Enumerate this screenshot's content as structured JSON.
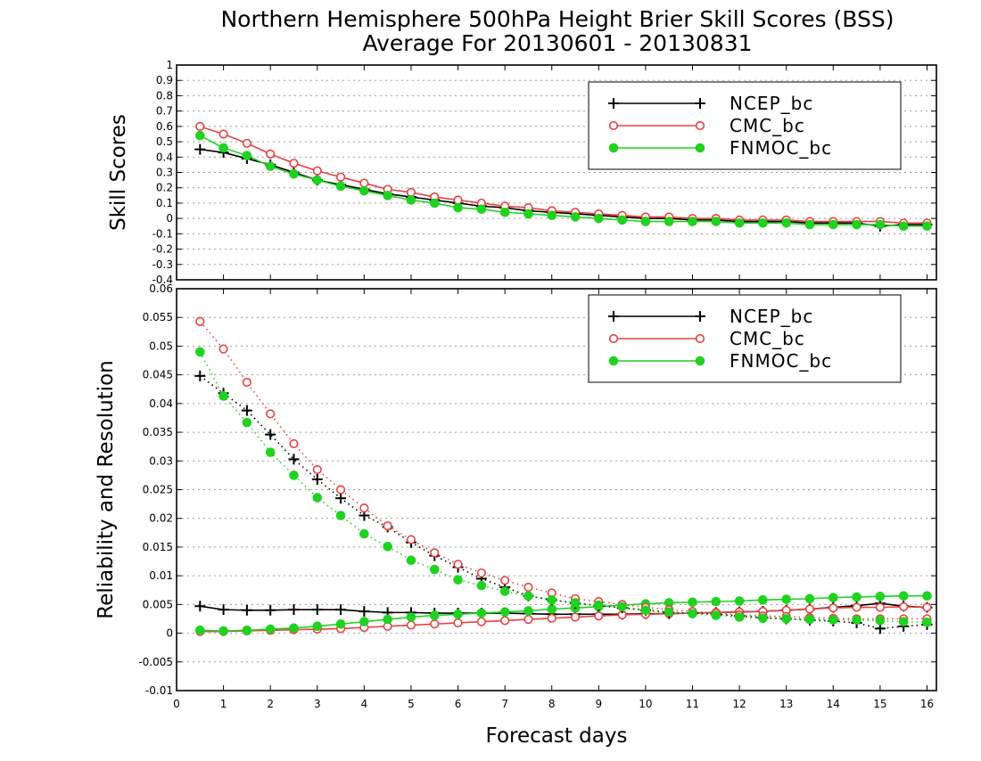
{
  "title": {
    "line1": "Northern Hemisphere 500hPa Height Brier Skill Scores (BSS)",
    "line2": "Average For 20130601 - 20130831"
  },
  "colors": {
    "NCEP_bc": "#000000",
    "CMC_bc": "#e84040",
    "FNMOC_bc": "#1fd21f"
  },
  "chart_data": [
    {
      "type": "line",
      "panel": "top",
      "ylabel": "Skill Scores",
      "xlabel": "",
      "xlim": [
        0,
        16.2
      ],
      "ylim": [
        -0.4,
        1
      ],
      "yticks": [
        "1",
        "0.9",
        "0.8",
        "0.7",
        "0.6",
        "0.5",
        "0.4",
        "0.3",
        "0.2",
        "0.1",
        "0",
        "-0.1",
        "-0.2",
        "-0.3",
        "-0.4"
      ],
      "ytick_values": [
        1,
        0.9,
        0.8,
        0.7,
        0.6,
        0.5,
        0.4,
        0.3,
        0.2,
        0.1,
        0,
        -0.1,
        -0.2,
        -0.3,
        -0.4
      ],
      "grid": true,
      "legend": {
        "placement": "top-right",
        "entries": [
          "NCEP_bc",
          "CMC_bc",
          "FNMOC_bc"
        ]
      },
      "x": [
        0.5,
        1,
        1.5,
        2,
        2.5,
        3,
        3.5,
        4,
        4.5,
        5,
        5.5,
        6,
        6.5,
        7,
        7.5,
        8,
        8.5,
        9,
        9.5,
        10,
        10.5,
        11,
        11.5,
        12,
        12.5,
        13,
        13.5,
        14,
        14.5,
        15,
        15.5,
        16
      ],
      "series": [
        {
          "name": "NCEP_bc",
          "marker": "plus",
          "style": "solid",
          "values": [
            0.45,
            0.43,
            0.39,
            0.35,
            0.3,
            0.25,
            0.22,
            0.19,
            0.16,
            0.14,
            0.12,
            0.1,
            0.08,
            0.07,
            0.05,
            0.04,
            0.03,
            0.02,
            0.01,
            0.0,
            0.0,
            -0.01,
            -0.01,
            -0.02,
            -0.02,
            -0.02,
            -0.03,
            -0.03,
            -0.03,
            -0.05,
            -0.04,
            -0.04
          ]
        },
        {
          "name": "CMC_bc",
          "marker": "open-circle",
          "style": "solid",
          "values": [
            0.6,
            0.55,
            0.49,
            0.42,
            0.36,
            0.31,
            0.27,
            0.23,
            0.19,
            0.17,
            0.14,
            0.12,
            0.1,
            0.08,
            0.07,
            0.05,
            0.04,
            0.03,
            0.02,
            0.01,
            0.01,
            0.0,
            0.0,
            -0.01,
            -0.01,
            -0.01,
            -0.02,
            -0.02,
            -0.02,
            -0.02,
            -0.03,
            -0.03
          ]
        },
        {
          "name": "FNMOC_bc",
          "marker": "filled-circle",
          "style": "solid",
          "values": [
            0.54,
            0.46,
            0.41,
            0.34,
            0.29,
            0.25,
            0.21,
            0.18,
            0.15,
            0.12,
            0.1,
            0.07,
            0.06,
            0.04,
            0.03,
            0.02,
            0.01,
            0.0,
            -0.01,
            -0.02,
            -0.02,
            -0.02,
            -0.02,
            -0.03,
            -0.03,
            -0.03,
            -0.04,
            -0.04,
            -0.04,
            -0.04,
            -0.05,
            -0.05
          ]
        }
      ]
    },
    {
      "type": "line",
      "panel": "bottom",
      "ylabel": "Reliability and Resolution",
      "xlabel": "Forecast days",
      "xlim": [
        0,
        16.2
      ],
      "ylim": [
        -0.01,
        0.06
      ],
      "xticks": [
        "0",
        "1",
        "2",
        "3",
        "4",
        "5",
        "6",
        "7",
        "8",
        "9",
        "10",
        "11",
        "12",
        "13",
        "14",
        "15",
        "16"
      ],
      "xtick_values": [
        0,
        1,
        2,
        3,
        4,
        5,
        6,
        7,
        8,
        9,
        10,
        11,
        12,
        13,
        14,
        15,
        16
      ],
      "yticks": [
        "0.06",
        "0.055",
        "0.05",
        "0.045",
        "0.04",
        "0.035",
        "0.03",
        "0.025",
        "0.02",
        "0.015",
        "0.01",
        "0.005",
        "0",
        "-0.005",
        "-0.01"
      ],
      "ytick_values": [
        0.06,
        0.055,
        0.05,
        0.045,
        0.04,
        0.035,
        0.03,
        0.025,
        0.02,
        0.015,
        0.01,
        0.005,
        0,
        -0.005,
        -0.01
      ],
      "grid": true,
      "legend": {
        "placement": "top-right",
        "entries": [
          "NCEP_bc",
          "CMC_bc",
          "FNMOC_bc"
        ]
      },
      "x": [
        0.5,
        1,
        1.5,
        2,
        2.5,
        3,
        3.5,
        4,
        4.5,
        5,
        5.5,
        6,
        6.5,
        7,
        7.5,
        8,
        8.5,
        9,
        9.5,
        10,
        10.5,
        11,
        11.5,
        12,
        12.5,
        13,
        13.5,
        14,
        14.5,
        15,
        15.5,
        16
      ],
      "series": [
        {
          "name": "NCEP_bc",
          "component": "reliability",
          "marker": "plus",
          "style": "solid",
          "values": [
            0.0047,
            0.0041,
            0.004,
            0.004,
            0.0041,
            0.0041,
            0.0041,
            0.0038,
            0.0036,
            0.0036,
            0.0035,
            0.0035,
            0.0035,
            0.0035,
            0.0034,
            0.0033,
            0.0033,
            0.0033,
            0.0033,
            0.0034,
            0.0034,
            0.0035,
            0.0036,
            0.0037,
            0.0038,
            0.004,
            0.0042,
            0.0045,
            0.0048,
            0.0052,
            0.0047,
            0.0045
          ]
        },
        {
          "name": "CMC_bc",
          "component": "reliability",
          "marker": "open-circle",
          "style": "solid",
          "values": [
            0.0003,
            0.0003,
            0.0004,
            0.0005,
            0.0006,
            0.0007,
            0.0008,
            0.001,
            0.0012,
            0.0014,
            0.0016,
            0.0018,
            0.002,
            0.0022,
            0.0024,
            0.0026,
            0.0028,
            0.003,
            0.0032,
            0.0033,
            0.0034,
            0.0035,
            0.0036,
            0.0037,
            0.0038,
            0.004,
            0.0042,
            0.0044,
            0.0045,
            0.0045,
            0.0046,
            0.0045
          ]
        },
        {
          "name": "FNMOC_bc",
          "component": "reliability",
          "marker": "filled-circle",
          "style": "solid",
          "values": [
            0.0005,
            0.0004,
            0.0005,
            0.0007,
            0.0009,
            0.0012,
            0.0016,
            0.002,
            0.0024,
            0.0028,
            0.0031,
            0.0033,
            0.0035,
            0.0037,
            0.0039,
            0.0042,
            0.0044,
            0.0046,
            0.0049,
            0.0051,
            0.0053,
            0.0054,
            0.0055,
            0.0056,
            0.0058,
            0.0059,
            0.006,
            0.0062,
            0.0063,
            0.0064,
            0.0065,
            0.0065
          ]
        },
        {
          "name": "NCEP_bc",
          "component": "resolution",
          "marker": "plus",
          "style": "dotted",
          "values": [
            0.0448,
            0.0418,
            0.0388,
            0.0346,
            0.0303,
            0.0268,
            0.0235,
            0.0205,
            0.0185,
            0.0158,
            0.0135,
            0.0115,
            0.0095,
            0.008,
            0.0065,
            0.0058,
            0.0052,
            0.0048,
            0.0044,
            0.004,
            0.0036,
            0.0035,
            0.0033,
            0.003,
            0.0027,
            0.0025,
            0.0023,
            0.0021,
            0.0018,
            0.0008,
            0.0012,
            0.0015
          ]
        },
        {
          "name": "CMC_bc",
          "component": "resolution",
          "marker": "open-circle",
          "style": "dotted",
          "values": [
            0.0543,
            0.0495,
            0.0437,
            0.0382,
            0.033,
            0.0285,
            0.025,
            0.0218,
            0.0187,
            0.0163,
            0.014,
            0.012,
            0.0105,
            0.0092,
            0.008,
            0.007,
            0.006,
            0.0055,
            0.005,
            0.0045,
            0.0041,
            0.0038,
            0.0035,
            0.0032,
            0.003,
            0.0029,
            0.0027,
            0.0026,
            0.0025,
            0.0025,
            0.0025,
            0.0025
          ]
        },
        {
          "name": "FNMOC_bc",
          "component": "resolution",
          "marker": "filled-circle",
          "style": "dotted",
          "values": [
            0.049,
            0.0413,
            0.0367,
            0.0315,
            0.0275,
            0.0236,
            0.0205,
            0.0173,
            0.0151,
            0.0127,
            0.0111,
            0.0093,
            0.0083,
            0.0073,
            0.0065,
            0.0058,
            0.0053,
            0.0049,
            0.0046,
            0.004,
            0.0037,
            0.0034,
            0.0031,
            0.0028,
            0.0026,
            0.0025,
            0.0024,
            0.0023,
            0.0023,
            0.0022,
            0.002,
            0.0019
          ]
        }
      ]
    }
  ]
}
